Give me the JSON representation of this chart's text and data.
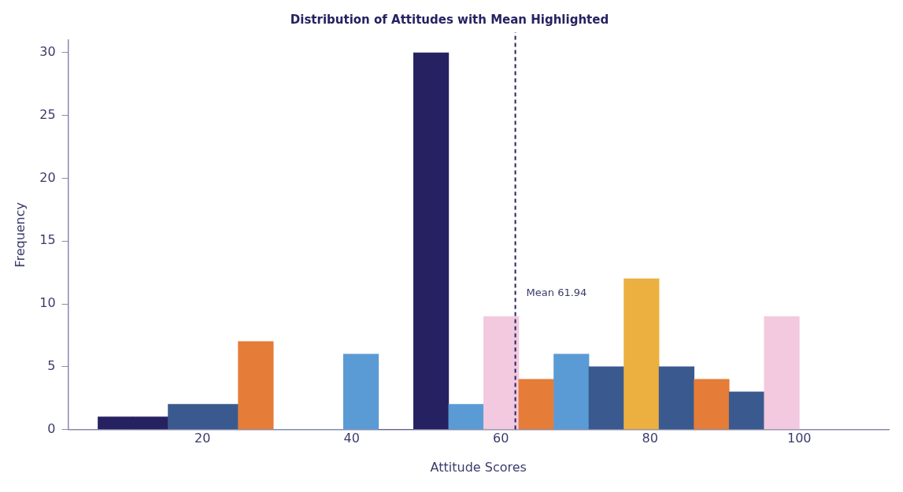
{
  "chart_data": {
    "type": "histogram",
    "title": "Distribution of Attitudes with Mean Highlighted",
    "xlabel": "Attitude Scores",
    "ylabel": "Frequency",
    "bins": [
      6,
      10.7,
      15.4,
      20.1,
      24.8,
      29.5,
      34.2,
      38.9,
      43.6,
      48.3,
      53,
      57.7,
      62.4,
      67.1,
      71.8,
      76.5,
      81.2,
      85.9,
      90.6,
      95.3,
      100
    ],
    "values": [
      1,
      1,
      2,
      2,
      7,
      0,
      0,
      6,
      0,
      30,
      2,
      9,
      4,
      6,
      5,
      12,
      5,
      4,
      3,
      9
    ],
    "colors": [
      "#262262",
      "#262262",
      "#3a5a8f",
      "#3a5a8f",
      "#e57c37",
      "#5b9bd5",
      "#5b9bd5",
      "#5b9bd5",
      "#262262",
      "#262262",
      "#5b9bd5",
      "#f2c9de",
      "#e57c37",
      "#5b9bd5",
      "#3a5a8f",
      "#ecb040",
      "#3a5a8f",
      "#e57c37",
      "#3a5a8f",
      "#f2c9de"
    ],
    "xlim": [
      2,
      112
    ],
    "xticks": [
      20,
      40,
      60,
      80,
      100
    ],
    "ylim": [
      0,
      31
    ],
    "yticks": [
      0,
      5,
      10,
      15,
      20,
      25,
      30
    ],
    "ref_lines": [
      {
        "axis": "x",
        "value": 61.94,
        "label": "Mean 61.94",
        "color": "#262262",
        "line_style": "dashed"
      }
    ],
    "grid": false,
    "legend": false
  }
}
